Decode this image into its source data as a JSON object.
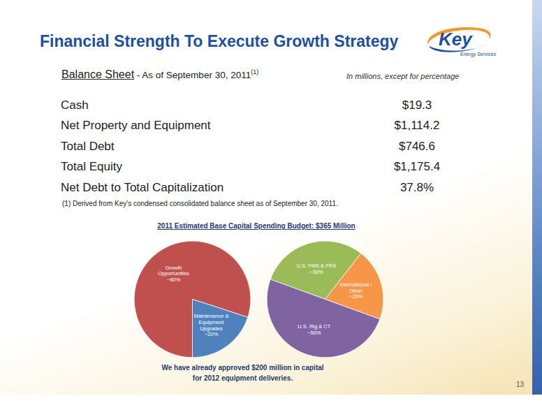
{
  "header": {
    "title": "Financial Strength To Execute Growth Strategy",
    "logo": {
      "name": "Key",
      "tagline": "Energy Services"
    }
  },
  "balance_sheet": {
    "heading": "Balance Sheet",
    "subheading": "- As of September 30, 2011",
    "footnote_marker": "(1)",
    "units_note": "In millions, except for percentage",
    "rows": [
      [
        "Cash",
        "$19.3"
      ],
      [
        "Net Property and Equipment",
        "$1,114.2"
      ],
      [
        "Total Debt",
        "$746.6"
      ],
      [
        "Total Equity",
        "$1,175.4"
      ],
      [
        "Net Debt to Total Capitalization",
        "37.8%"
      ]
    ],
    "footnote": "(1) Derived from Key's condensed consolidated balance sheet as of September 30, 2011."
  },
  "charts_title": "2011 Estimated Base Capital Spending Budget: $365 Million",
  "chart_data": [
    {
      "type": "pie",
      "categories": [
        "Growth Opportunities",
        "Maintenance & Equipment Upgrades"
      ],
      "values": [
        80,
        20
      ],
      "value_labels": [
        "~80%",
        "~20%"
      ],
      "colors": [
        "#c0504d",
        "#4f81bd"
      ],
      "data_labels": true
    },
    {
      "type": "pie",
      "categories": [
        "U.S. FMS & FRS",
        "International / Other",
        "U.S. Rig & CT"
      ],
      "values": [
        30,
        20,
        50
      ],
      "value_labels": [
        "~30%",
        "~20%",
        "~50%"
      ],
      "colors": [
        "#9bbb59",
        "#f79646",
        "#8064a2"
      ],
      "data_labels": true
    }
  ],
  "note": "We have already approved $200 million in capital for 2012 equipment deliveries.",
  "page_number": "13"
}
